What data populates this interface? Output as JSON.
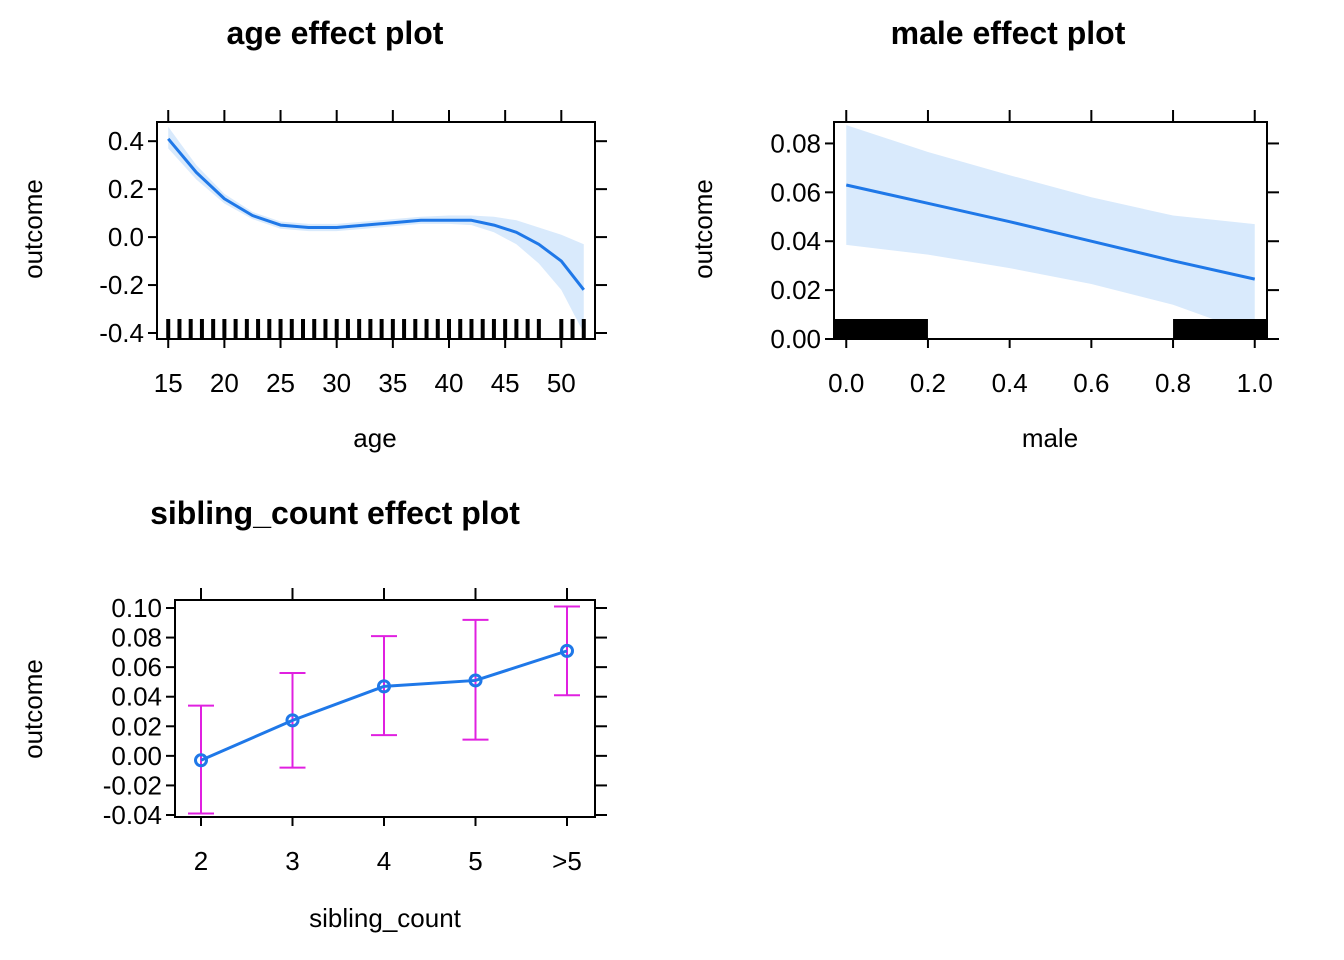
{
  "colors": {
    "line": "#1f78e8",
    "band": "#d9eafc",
    "error_bar": "#e020e0",
    "frame": "#000000",
    "rug": "#000000"
  },
  "chart_data": [
    {
      "type": "line",
      "title": "age effect plot",
      "xlabel": "age",
      "ylabel": "outcome",
      "xlim": [
        14,
        53
      ],
      "ylim": [
        -0.4,
        0.48
      ],
      "x_ticks": [
        15,
        20,
        25,
        30,
        35,
        40,
        45,
        50
      ],
      "y_ticks": [
        -0.4,
        -0.2,
        0.0,
        0.2,
        0.4
      ],
      "y_tick_labels": [
        "-0.4",
        "-0.2",
        "0.0",
        "0.2",
        "0.4"
      ],
      "x": [
        15,
        17.5,
        20,
        22.5,
        25,
        27.5,
        30,
        32.5,
        35,
        37.5,
        40,
        42,
        44,
        46,
        48,
        50,
        52
      ],
      "fit": [
        0.41,
        0.27,
        0.16,
        0.09,
        0.05,
        0.04,
        0.04,
        0.05,
        0.06,
        0.07,
        0.07,
        0.07,
        0.05,
        0.02,
        -0.03,
        -0.1,
        -0.22
      ],
      "lower": [
        0.37,
        0.24,
        0.14,
        0.075,
        0.035,
        0.025,
        0.025,
        0.035,
        0.045,
        0.055,
        0.055,
        0.05,
        0.02,
        -0.03,
        -0.11,
        -0.22,
        -0.4
      ],
      "upper": [
        0.46,
        0.3,
        0.18,
        0.105,
        0.065,
        0.055,
        0.055,
        0.065,
        0.075,
        0.085,
        0.09,
        0.09,
        0.085,
        0.07,
        0.04,
        0.01,
        -0.03
      ],
      "rug": [
        15,
        16,
        17,
        18,
        19,
        20,
        21,
        22,
        23,
        24,
        25,
        26,
        27,
        28,
        29,
        30,
        31,
        32,
        33,
        34,
        35,
        36,
        37,
        38,
        39,
        40,
        41,
        42,
        43,
        44,
        45,
        46,
        47,
        48,
        50,
        51,
        52
      ]
    },
    {
      "type": "line",
      "title": "male effect plot",
      "xlabel": "male",
      "ylabel": "outcome",
      "xlim": [
        -0.03,
        1.03
      ],
      "ylim": [
        0.0,
        0.09
      ],
      "x_ticks": [
        0.0,
        0.2,
        0.4,
        0.6,
        0.8,
        1.0
      ],
      "x_tick_labels": [
        "0.0",
        "0.2",
        "0.4",
        "0.6",
        "0.8",
        "1.0"
      ],
      "y_ticks": [
        0.0,
        0.02,
        0.04,
        0.06,
        0.08
      ],
      "y_tick_labels": [
        "0.00",
        "0.02",
        "0.04",
        "0.06",
        "0.08"
      ],
      "x": [
        0.0,
        0.2,
        0.4,
        0.6,
        0.8,
        1.0
      ],
      "fit": [
        0.063,
        0.0555,
        0.048,
        0.04,
        0.032,
        0.0245
      ],
      "lower": [
        0.0385,
        0.0345,
        0.029,
        0.0225,
        0.014,
        0.002
      ],
      "upper": [
        0.0875,
        0.0765,
        0.067,
        0.058,
        0.0505,
        0.047
      ],
      "rug_blocks": [
        [
          -0.03,
          0.2
        ],
        [
          0.8,
          1.03
        ]
      ]
    },
    {
      "type": "line",
      "title": "sibling_count effect plot",
      "xlabel": "sibling_count",
      "ylabel": "outcome",
      "categories": [
        "2",
        "3",
        "4",
        "5",
        ">5"
      ],
      "ylim": [
        -0.04,
        0.1
      ],
      "y_ticks": [
        -0.04,
        -0.02,
        0.0,
        0.02,
        0.04,
        0.06,
        0.08,
        0.1
      ],
      "y_tick_labels": [
        "-0.04",
        "-0.02",
        "0.00",
        "0.02",
        "0.04",
        "0.06",
        "0.08",
        "0.10"
      ],
      "values": [
        -0.003,
        0.024,
        0.047,
        0.051,
        0.071
      ],
      "lower": [
        -0.039,
        -0.008,
        0.014,
        0.011,
        0.041
      ],
      "upper": [
        0.034,
        0.056,
        0.081,
        0.092,
        0.101
      ]
    }
  ]
}
